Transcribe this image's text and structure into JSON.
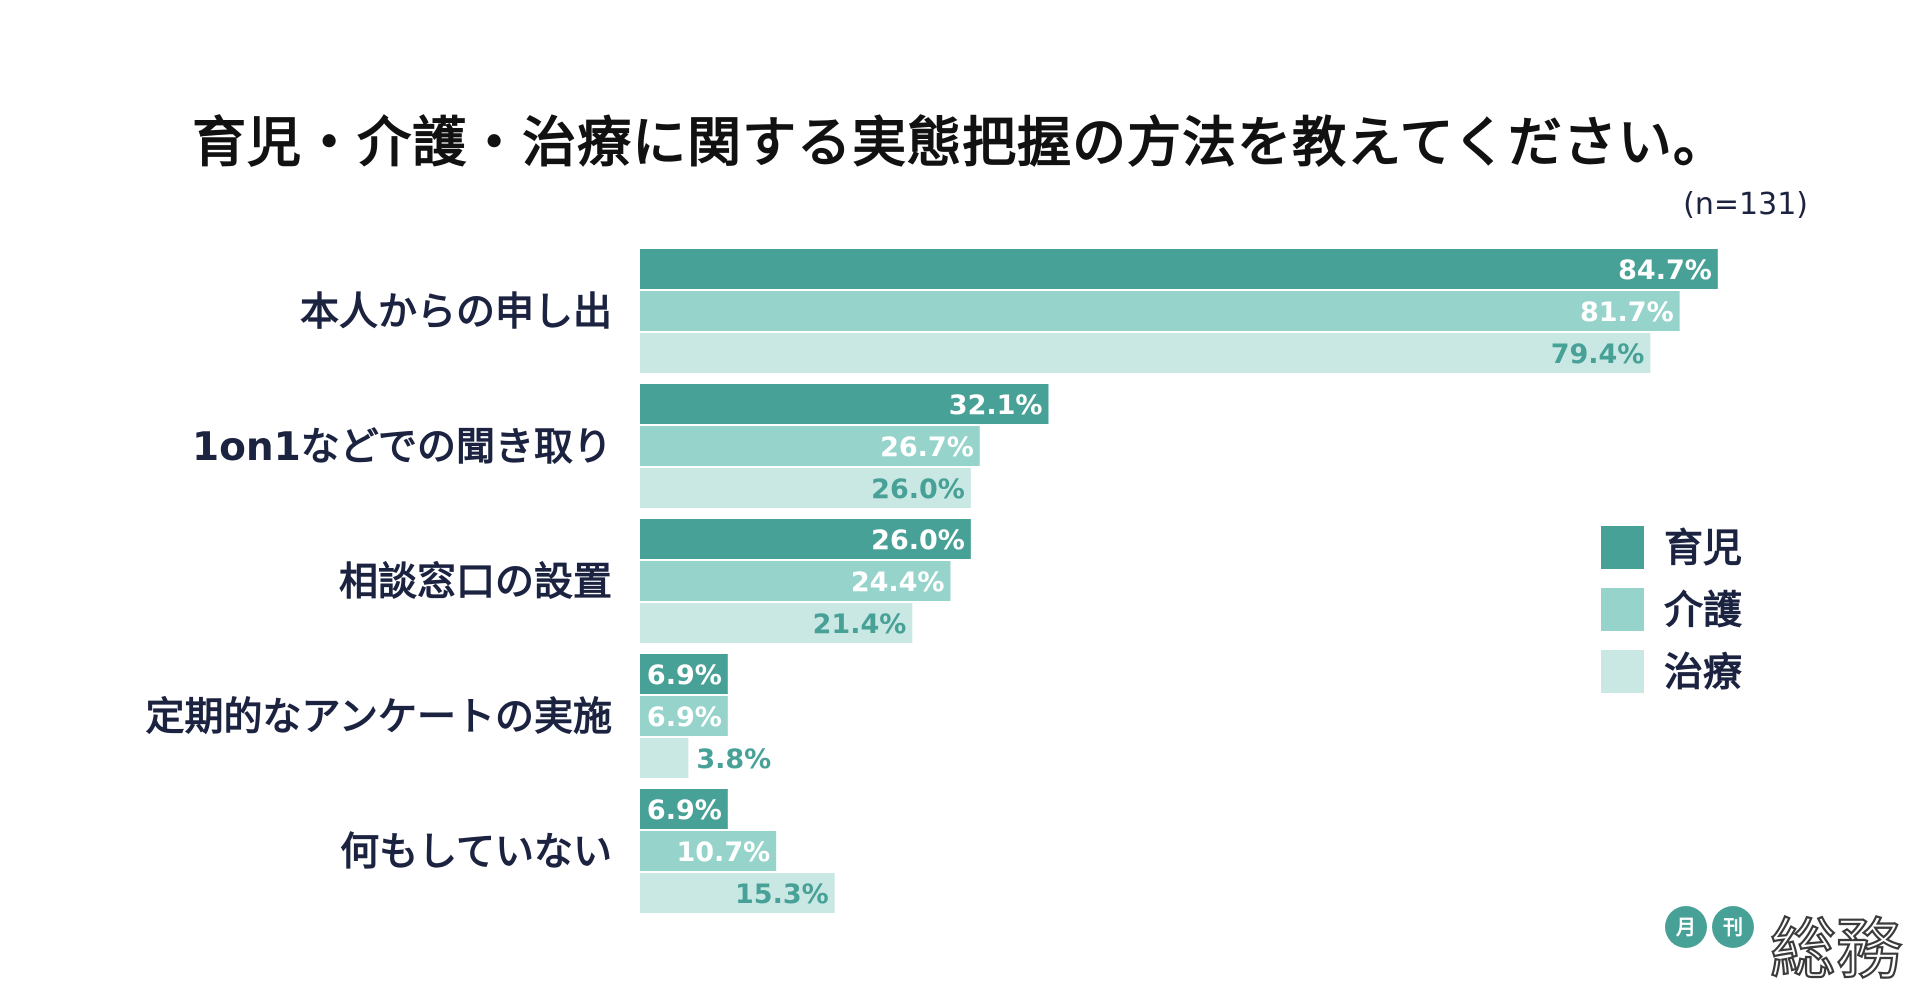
{
  "chart_data": {
    "type": "bar",
    "orientation": "horizontal",
    "title": "育児・介護・治療に関する実態把握の方法を教えてください。",
    "sample_size": "(n=131)",
    "categories": [
      "本人からの申し出",
      "1on1などでの聞き取り",
      "相談窓口の設置",
      "定期的なアンケートの実施",
      "何もしていない"
    ],
    "series": [
      {
        "name": "育児",
        "color": "#48a197",
        "values": [
          84.7,
          32.1,
          26.0,
          6.9,
          6.9
        ]
      },
      {
        "name": "介護",
        "color": "#96d4cb",
        "values": [
          81.7,
          26.7,
          24.4,
          6.9,
          10.7
        ]
      },
      {
        "name": "治療",
        "color": "#c9e8e4",
        "values": [
          79.4,
          26.0,
          21.4,
          3.8,
          15.3
        ]
      }
    ],
    "value_suffix": "%",
    "xlim": [
      0,
      100
    ],
    "legend": "right",
    "grid": false
  },
  "brand": {
    "badge1": "月",
    "badge2": "刊",
    "name": "総務"
  }
}
